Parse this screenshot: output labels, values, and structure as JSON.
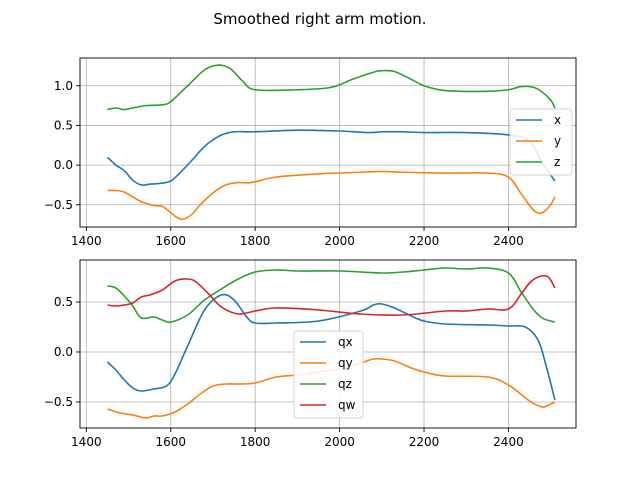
{
  "title": "Smoothed right arm motion.",
  "colors": {
    "c0": "#1f77b4",
    "c1": "#ff7f0e",
    "c2": "#2ca02c",
    "c3": "#d62728",
    "grid": "#b0b0b0"
  },
  "chart_data": [
    {
      "type": "line",
      "grid": true,
      "legend": "right",
      "xlim": [
        1385,
        2560
      ],
      "ylim": [
        -0.78,
        1.35
      ],
      "xticks": [
        1400,
        1600,
        1800,
        2000,
        2200,
        2400
      ],
      "yticks": [
        -0.5,
        0.0,
        0.5,
        1.0
      ],
      "xtick_labels": [
        "1400",
        "1600",
        "1800",
        "2000",
        "2200",
        "2400"
      ],
      "ytick_labels": [
        "−0.5",
        "0.0",
        "0.5",
        "1.0"
      ],
      "series": [
        {
          "name": "x",
          "color": "#1f77b4",
          "x": [
            1450,
            1470,
            1490,
            1510,
            1530,
            1550,
            1575,
            1600,
            1625,
            1650,
            1670,
            1690,
            1720,
            1750,
            1800,
            1900,
            2000,
            2070,
            2100,
            2150,
            2200,
            2300,
            2400,
            2450,
            2480,
            2510
          ],
          "y": [
            0.1,
            0.0,
            -0.07,
            -0.19,
            -0.25,
            -0.24,
            -0.23,
            -0.2,
            -0.08,
            0.06,
            0.18,
            0.28,
            0.38,
            0.42,
            0.42,
            0.44,
            0.43,
            0.41,
            0.42,
            0.42,
            0.41,
            0.41,
            0.38,
            0.3,
            0.03,
            -0.2
          ]
        },
        {
          "name": "y",
          "color": "#ff7f0e",
          "x": [
            1450,
            1470,
            1490,
            1510,
            1530,
            1560,
            1580,
            1600,
            1615,
            1630,
            1650,
            1670,
            1700,
            1730,
            1760,
            1790,
            1850,
            1950,
            2050,
            2100,
            2150,
            2250,
            2350,
            2400,
            2430,
            2460,
            2480,
            2500,
            2510
          ],
          "y": [
            -0.32,
            -0.32,
            -0.34,
            -0.4,
            -0.46,
            -0.51,
            -0.52,
            -0.6,
            -0.66,
            -0.68,
            -0.62,
            -0.5,
            -0.35,
            -0.25,
            -0.22,
            -0.22,
            -0.15,
            -0.11,
            -0.09,
            -0.08,
            -0.09,
            -0.1,
            -0.1,
            -0.15,
            -0.36,
            -0.57,
            -0.6,
            -0.5,
            -0.4
          ]
        },
        {
          "name": "z",
          "color": "#2ca02c",
          "x": [
            1450,
            1470,
            1490,
            1510,
            1540,
            1580,
            1600,
            1640,
            1680,
            1710,
            1740,
            1770,
            1800,
            1900,
            1980,
            2030,
            2080,
            2100,
            2130,
            2170,
            2200,
            2250,
            2350,
            2400,
            2430,
            2460,
            2480,
            2500,
            2510
          ],
          "y": [
            0.7,
            0.72,
            0.7,
            0.72,
            0.75,
            0.76,
            0.8,
            1.0,
            1.2,
            1.26,
            1.22,
            1.06,
            0.95,
            0.95,
            0.98,
            1.08,
            1.17,
            1.19,
            1.18,
            1.08,
            1.0,
            0.94,
            0.93,
            0.95,
            0.99,
            0.98,
            0.92,
            0.82,
            0.72
          ]
        }
      ]
    },
    {
      "type": "line",
      "grid": true,
      "legend": "center",
      "xlim": [
        1385,
        2560
      ],
      "ylim": [
        -0.76,
        0.92
      ],
      "xticks": [
        1400,
        1600,
        1800,
        2000,
        2200,
        2400
      ],
      "yticks": [
        -0.5,
        0.0,
        0.5
      ],
      "xtick_labels": [
        "1400",
        "1600",
        "1800",
        "2000",
        "2200",
        "2400"
      ],
      "ytick_labels": [
        "−0.5",
        "0.0",
        "0.5"
      ],
      "series": [
        {
          "name": "qx",
          "color": "#1f77b4",
          "x": [
            1450,
            1470,
            1490,
            1510,
            1530,
            1560,
            1590,
            1610,
            1640,
            1680,
            1720,
            1750,
            1780,
            1800,
            1850,
            1950,
            2050,
            2080,
            2100,
            2130,
            2170,
            2200,
            2250,
            2350,
            2400,
            2440,
            2470,
            2490,
            2510
          ],
          "y": [
            -0.1,
            -0.18,
            -0.28,
            -0.36,
            -0.39,
            -0.37,
            -0.34,
            -0.22,
            0.06,
            0.42,
            0.57,
            0.52,
            0.35,
            0.29,
            0.29,
            0.31,
            0.41,
            0.47,
            0.48,
            0.44,
            0.36,
            0.31,
            0.28,
            0.27,
            0.26,
            0.25,
            0.12,
            -0.15,
            -0.48
          ]
        },
        {
          "name": "qy",
          "color": "#ff7f0e",
          "x": [
            1450,
            1480,
            1510,
            1540,
            1560,
            1580,
            1610,
            1640,
            1670,
            1700,
            1730,
            1760,
            1800,
            1850,
            1900,
            1950,
            2000,
            2050,
            2080,
            2100,
            2130,
            2170,
            2200,
            2250,
            2350,
            2400,
            2450,
            2480,
            2500,
            2510
          ],
          "y": [
            -0.57,
            -0.61,
            -0.63,
            -0.66,
            -0.64,
            -0.64,
            -0.6,
            -0.52,
            -0.42,
            -0.34,
            -0.32,
            -0.32,
            -0.31,
            -0.25,
            -0.23,
            -0.2,
            -0.17,
            -0.11,
            -0.07,
            -0.07,
            -0.09,
            -0.16,
            -0.2,
            -0.24,
            -0.25,
            -0.33,
            -0.49,
            -0.55,
            -0.52,
            -0.5
          ]
        },
        {
          "name": "qz",
          "color": "#2ca02c",
          "x": [
            1450,
            1470,
            1490,
            1510,
            1530,
            1560,
            1580,
            1600,
            1640,
            1680,
            1720,
            1760,
            1800,
            1850,
            1900,
            2000,
            2100,
            2150,
            2200,
            2250,
            2300,
            2350,
            2400,
            2430,
            2460,
            2480,
            2500,
            2510
          ],
          "y": [
            0.66,
            0.64,
            0.56,
            0.46,
            0.34,
            0.35,
            0.32,
            0.3,
            0.37,
            0.52,
            0.63,
            0.73,
            0.8,
            0.82,
            0.81,
            0.81,
            0.79,
            0.8,
            0.82,
            0.84,
            0.83,
            0.84,
            0.79,
            0.6,
            0.42,
            0.34,
            0.31,
            0.3
          ]
        },
        {
          "name": "qw",
          "color": "#d62728",
          "x": [
            1450,
            1470,
            1490,
            1510,
            1530,
            1550,
            1580,
            1610,
            1640,
            1660,
            1690,
            1720,
            1760,
            1800,
            1850,
            1950,
            2050,
            2150,
            2250,
            2300,
            2350,
            2400,
            2430,
            2450,
            2470,
            2490,
            2500,
            2510
          ],
          "y": [
            0.47,
            0.46,
            0.47,
            0.49,
            0.55,
            0.57,
            0.62,
            0.71,
            0.73,
            0.7,
            0.58,
            0.45,
            0.38,
            0.41,
            0.44,
            0.42,
            0.38,
            0.37,
            0.41,
            0.41,
            0.43,
            0.43,
            0.58,
            0.69,
            0.75,
            0.76,
            0.72,
            0.64
          ]
        }
      ]
    }
  ]
}
